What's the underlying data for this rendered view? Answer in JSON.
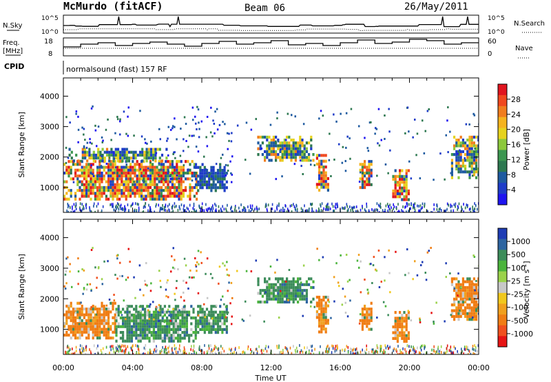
{
  "header": {
    "station": "McMurdo (fitACF)",
    "beam": "Beam 06",
    "date": "26/May/2011"
  },
  "side_labels": {
    "nsky": "N.Sky",
    "nsearch": "N.Search",
    "freq_line1": "Freq.",
    "freq_line2": "[MHz]",
    "nave": "Nave",
    "cpid": "CPID",
    "nsky_ticks": [
      "10^5",
      "10^0"
    ],
    "nsearch_ticks": [
      "10^5",
      "10^0"
    ],
    "freq_ticks": [
      "18",
      "8"
    ],
    "nave_ticks": [
      "60",
      "0"
    ]
  },
  "cpid_text": "normalsound (fast) 157 RF",
  "chart_data": [
    {
      "type": "heatmap",
      "title": "",
      "ylabel": "Slant Range [km]",
      "xlabel": "",
      "x_ticks": [
        "00:00",
        "04:00",
        "08:00",
        "12:00",
        "16:00",
        "20:00",
        "00:00"
      ],
      "y_ticks": [
        1000,
        2000,
        3000,
        4000
      ],
      "ylim": [
        180,
        4600
      ],
      "xlim_hours": [
        0,
        24
      ],
      "colorbar": {
        "label": "Power [dB]",
        "ticks": [
          "28",
          "24",
          "20",
          "16",
          "12",
          "8",
          "4"
        ],
        "colors": [
          "#e0141e",
          "#f0481e",
          "#f07d1e",
          "#f5b31e",
          "#e6d21e",
          "#8cc83c",
          "#3c9650",
          "#2d7850",
          "#1e5aa0",
          "#1e3cc8",
          "#1e14f0"
        ]
      },
      "regions": [
        {
          "t0": 0.0,
          "t1": 7.7,
          "r0": 600,
          "r1": 1900,
          "level": "high"
        },
        {
          "t0": 0.3,
          "t1": 6.0,
          "r0": 1900,
          "r1": 2300,
          "level": "mid"
        },
        {
          "t0": 7.6,
          "t1": 9.5,
          "r0": 900,
          "r1": 1800,
          "level": "low"
        },
        {
          "t0": 11.2,
          "t1": 14.5,
          "r0": 1900,
          "r1": 2700,
          "level": "mid"
        },
        {
          "t0": 14.6,
          "t1": 15.3,
          "r0": 900,
          "r1": 2100,
          "level": "high"
        },
        {
          "t0": 17.1,
          "t1": 17.8,
          "r0": 1000,
          "r1": 1900,
          "level": "high"
        },
        {
          "t0": 19.0,
          "t1": 19.9,
          "r0": 600,
          "r1": 1600,
          "level": "high"
        },
        {
          "t0": 22.4,
          "t1": 24.0,
          "r0": 1300,
          "r1": 2700,
          "level": "mid"
        }
      ]
    },
    {
      "type": "heatmap",
      "title": "",
      "ylabel": "Slant Range [km]",
      "xlabel": "Time UT",
      "x_ticks": [
        "00:00",
        "04:00",
        "08:00",
        "12:00",
        "16:00",
        "20:00",
        "00:00"
      ],
      "y_ticks": [
        1000,
        2000,
        3000,
        4000
      ],
      "ylim": [
        180,
        4600
      ],
      "xlim_hours": [
        0,
        24
      ],
      "colorbar": {
        "label": "Velocity [m s",
        "label_sup": "-1",
        "label_end": "]",
        "ticks": [
          "1000",
          "500",
          "100",
          "25",
          "-25",
          "-100",
          "-500",
          "-1000"
        ],
        "colors": [
          "#1e3cb4",
          "#2d64a0",
          "#3c8c5a",
          "#4bb43c",
          "#9bd24b",
          "#c8c8c8",
          "#f0c81e",
          "#f0a01e",
          "#f07d14",
          "#f0501e",
          "#e61414"
        ]
      },
      "regions": [
        {
          "t0": 0.0,
          "t1": 3.0,
          "r0": 700,
          "r1": 1900,
          "level": "neg"
        },
        {
          "t0": 3.0,
          "t1": 7.7,
          "r0": 600,
          "r1": 1800,
          "level": "pos"
        },
        {
          "t0": 7.6,
          "t1": 9.5,
          "r0": 900,
          "r1": 1800,
          "level": "pos"
        },
        {
          "t0": 11.2,
          "t1": 14.5,
          "r0": 1900,
          "r1": 2700,
          "level": "pos"
        },
        {
          "t0": 14.6,
          "t1": 15.3,
          "r0": 900,
          "r1": 2100,
          "level": "neg"
        },
        {
          "t0": 17.1,
          "t1": 17.8,
          "r0": 1000,
          "r1": 1900,
          "level": "neg"
        },
        {
          "t0": 19.0,
          "t1": 19.9,
          "r0": 600,
          "r1": 1600,
          "level": "neg"
        },
        {
          "t0": 22.4,
          "t1": 24.0,
          "r0": 1300,
          "r1": 2700,
          "level": "neg"
        }
      ]
    }
  ]
}
